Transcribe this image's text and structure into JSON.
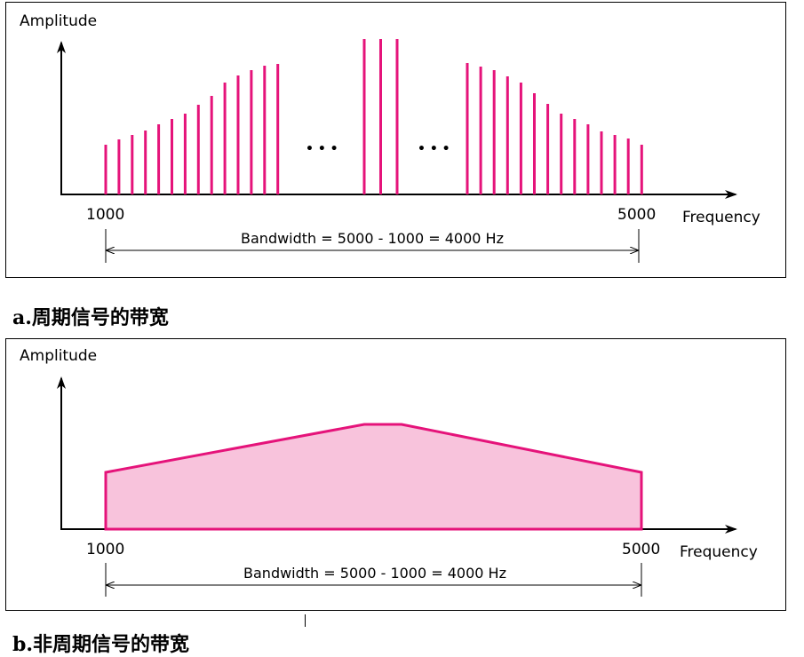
{
  "colors": {
    "signal": "#e5137a",
    "fill": "#f8c3dc",
    "axis": "#000000"
  },
  "panel_a": {
    "ylabel": "Amplitude",
    "xlabel": "Frequency",
    "tick_start": "1000",
    "tick_end": "5000",
    "bandwidth_label": "Bandwidth = 5000 - 1000 = 4000 Hz",
    "ellipsis_left": "• • •",
    "ellipsis_right": "• • •",
    "caption": "a.周期信号的带宽"
  },
  "panel_b": {
    "ylabel": "Amplitude",
    "xlabel": "Frequency",
    "tick_start": "1000",
    "tick_end": "5000",
    "bandwidth_label": "Bandwidth = 5000 - 1000 = 4000 Hz",
    "caption": "b.非周期信号的带宽"
  }
}
